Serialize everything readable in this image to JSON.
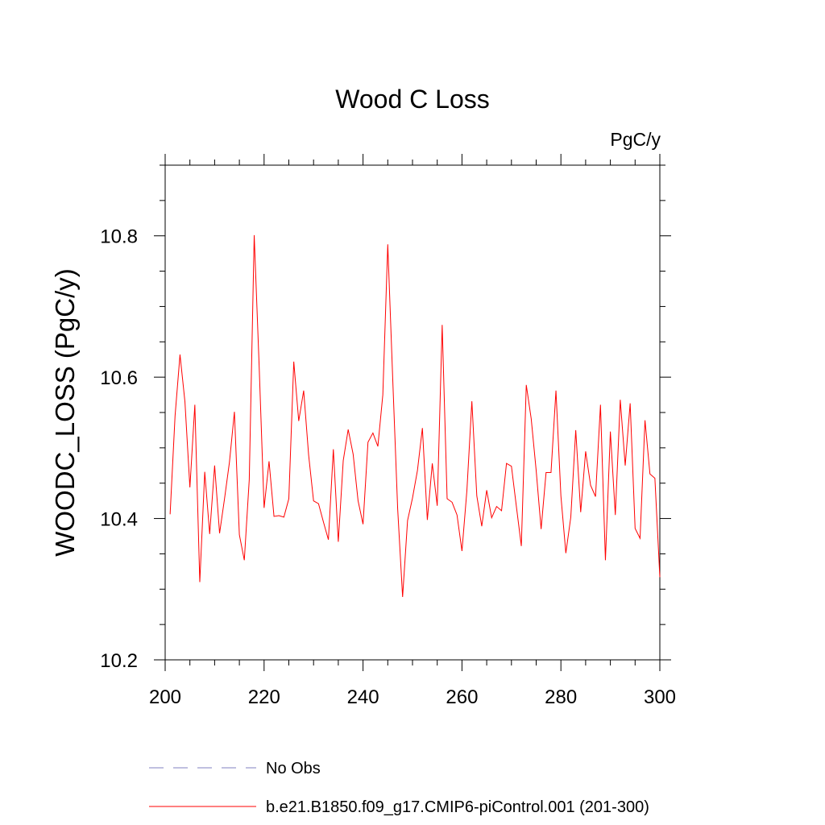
{
  "chart_data": {
    "type": "line",
    "title": "Wood C Loss",
    "units_label": "PgC/y",
    "xlabel": "",
    "ylabel": "WOODC_LOSS  (PgC/y)",
    "xlim": [
      200,
      300
    ],
    "ylim": [
      10.2,
      10.9
    ],
    "x_ticks": [
      "200",
      "220",
      "240",
      "260",
      "280",
      "300"
    ],
    "y_ticks": [
      "10.2",
      "10.4",
      "10.6",
      "10.8"
    ],
    "grid": false,
    "legend_position": "bottom",
    "legend": [
      {
        "label": "No Obs",
        "style": "dashed",
        "color": "#8080c0"
      },
      {
        "label": "b.e21.B1850.f09_g17.CMIP6-piControl.001 (201-300)",
        "style": "solid",
        "color": "#ff0000"
      }
    ],
    "series": [
      {
        "name": "b.e21.B1850.f09_g17.CMIP6-piControl.001 (201-300)",
        "color": "#ff0000",
        "x": [
          201,
          202,
          203,
          204,
          205,
          206,
          207,
          208,
          209,
          210,
          211,
          212,
          213,
          214,
          215,
          216,
          217,
          218,
          219,
          220,
          221,
          222,
          223,
          224,
          225,
          226,
          227,
          228,
          229,
          230,
          231,
          232,
          233,
          234,
          235,
          236,
          237,
          238,
          239,
          240,
          241,
          242,
          243,
          244,
          245,
          246,
          247,
          248,
          249,
          250,
          251,
          252,
          253,
          254,
          255,
          256,
          257,
          258,
          259,
          260,
          261,
          262,
          263,
          264,
          265,
          266,
          267,
          268,
          269,
          270,
          271,
          272,
          273,
          274,
          275,
          276,
          277,
          278,
          279,
          280,
          281,
          282,
          283,
          284,
          285,
          286,
          287,
          288,
          289,
          290,
          291,
          292,
          293,
          294,
          295,
          296,
          297,
          298,
          299,
          300
        ],
        "values": [
          10.406,
          10.545,
          10.632,
          10.565,
          10.444,
          10.561,
          10.31,
          10.466,
          10.378,
          10.475,
          10.379,
          10.428,
          10.48,
          10.551,
          10.377,
          10.341,
          10.455,
          10.801,
          10.616,
          10.415,
          10.481,
          10.403,
          10.404,
          10.402,
          10.428,
          10.622,
          10.538,
          10.581,
          10.49,
          10.425,
          10.421,
          10.395,
          10.37,
          10.498,
          10.367,
          10.482,
          10.526,
          10.491,
          10.425,
          10.392,
          10.508,
          10.521,
          10.502,
          10.575,
          10.788,
          10.598,
          10.414,
          10.289,
          10.397,
          10.429,
          10.468,
          10.528,
          10.398,
          10.478,
          10.418,
          10.674,
          10.428,
          10.423,
          10.405,
          10.354,
          10.44,
          10.566,
          10.432,
          10.389,
          10.44,
          10.401,
          10.417,
          10.411,
          10.478,
          10.474,
          10.417,
          10.361,
          10.589,
          10.541,
          10.468,
          10.385,
          10.465,
          10.465,
          10.581,
          10.432,
          10.351,
          10.402,
          10.525,
          10.409,
          10.495,
          10.447,
          10.431,
          10.561,
          10.341,
          10.523,
          10.405,
          10.568,
          10.475,
          10.563,
          10.386,
          10.372,
          10.539,
          10.463,
          10.457,
          10.317
        ]
      }
    ]
  }
}
